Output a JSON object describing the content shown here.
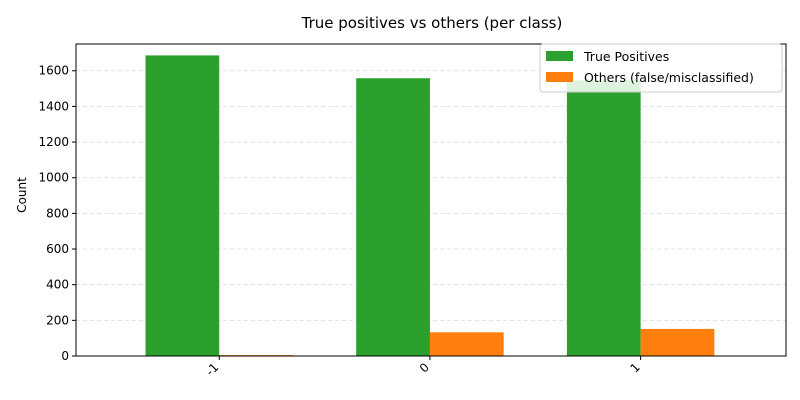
{
  "chart_data": {
    "type": "bar",
    "title": "True positives vs others (per class)",
    "xlabel": "",
    "ylabel": "Count",
    "categories": [
      "-1",
      "0",
      "1"
    ],
    "series": [
      {
        "name": "True Positives",
        "values": [
          1686,
          1558,
          1546
        ],
        "color": "#2ca02c"
      },
      {
        "name": "Others (false/misclassified)",
        "values": [
          5,
          133,
          152
        ],
        "color": "#ff7f0e"
      }
    ],
    "ylim": [
      0,
      1750
    ],
    "yticks": [
      0,
      200,
      400,
      600,
      800,
      1000,
      1200,
      1400,
      1600
    ],
    "grid": "y-dashed",
    "legend_position": "top-right"
  }
}
